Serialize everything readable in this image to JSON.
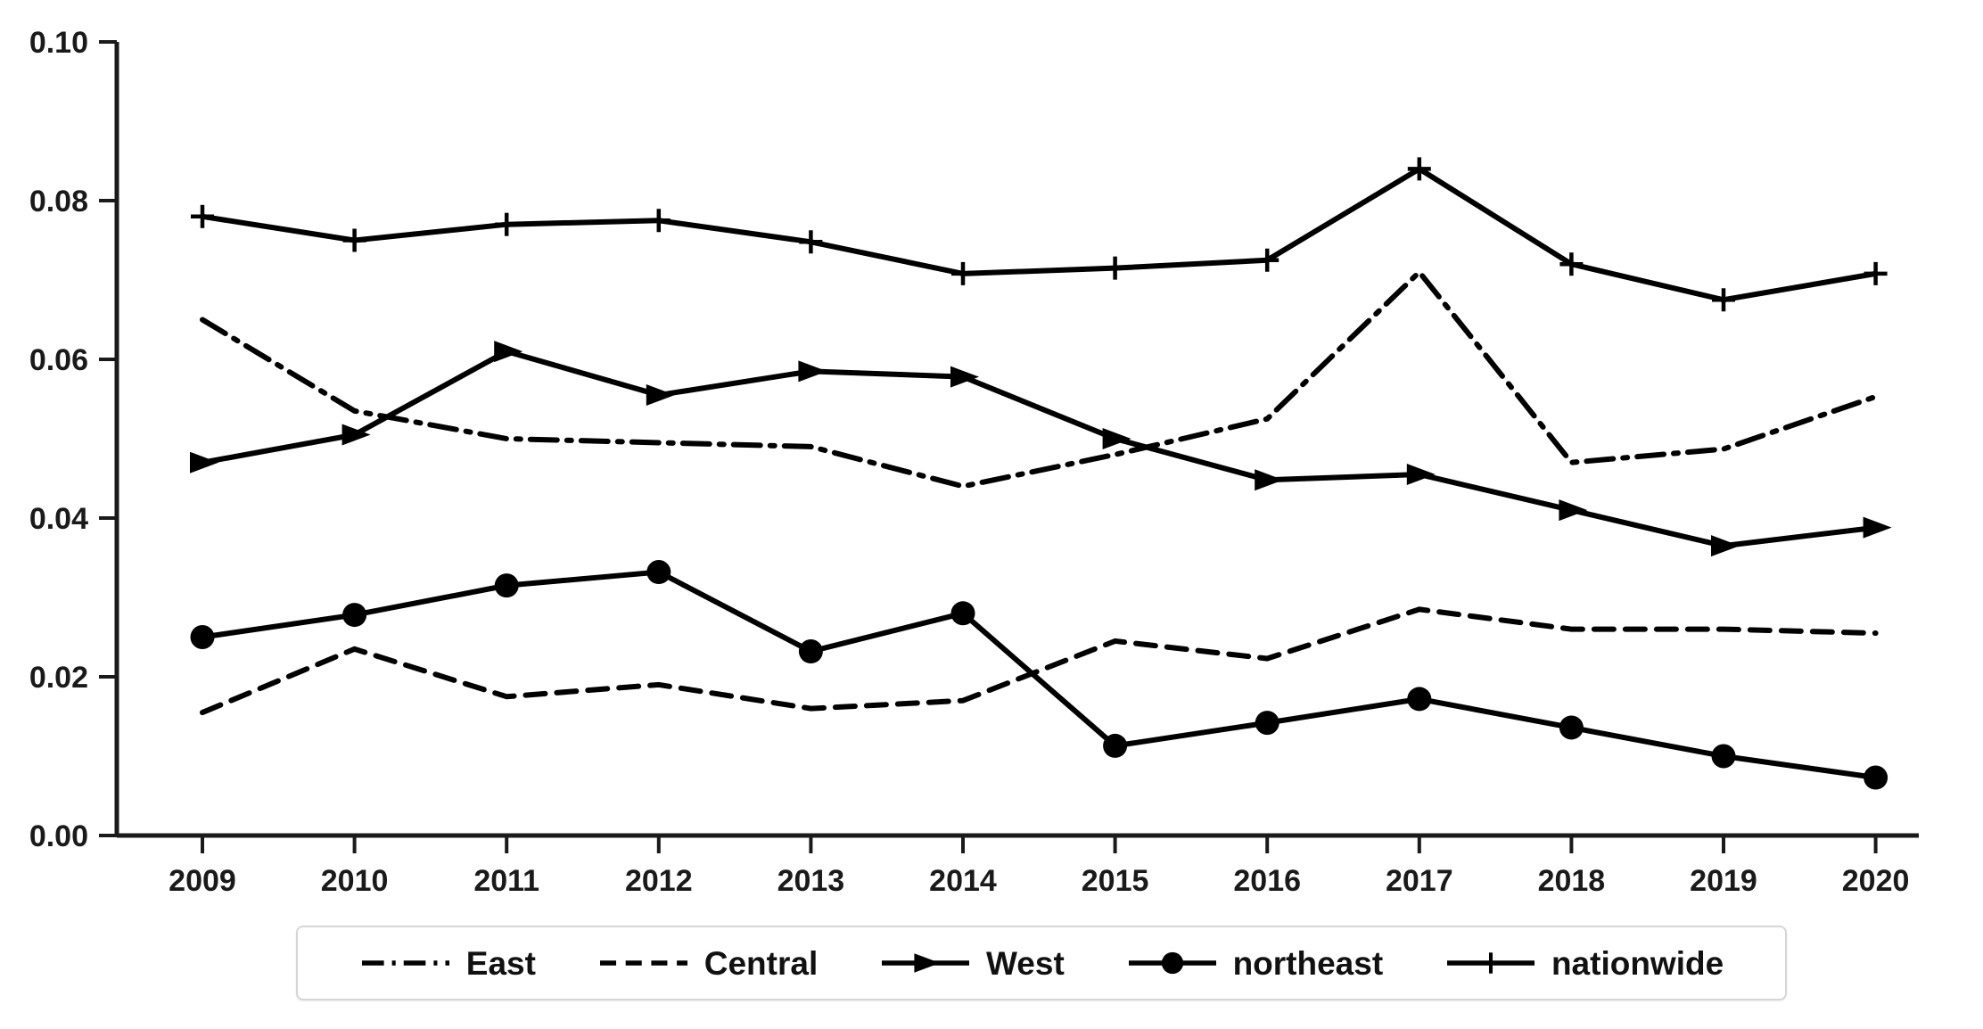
{
  "chart_data": {
    "type": "line",
    "title": "",
    "xlabel": "",
    "ylabel": "",
    "x": [
      2009,
      2010,
      2011,
      2012,
      2013,
      2014,
      2015,
      2016,
      2017,
      2018,
      2019,
      2020
    ],
    "ylim": [
      0.0,
      0.1
    ],
    "ytick_labels": [
      "0.00",
      "0.02",
      "0.04",
      "0.06",
      "0.08",
      "0.10"
    ],
    "ytick_values": [
      0.0,
      0.02,
      0.04,
      0.06,
      0.08,
      0.1
    ],
    "grid": false,
    "legend_position": "bottom",
    "axis_color": "#1a1a1a",
    "line_color": "#000000",
    "series": [
      {
        "name": "East",
        "line_style": "dashdot",
        "marker": "none",
        "values": [
          0.065,
          0.0535,
          0.05,
          0.0495,
          0.049,
          0.044,
          0.048,
          0.0525,
          0.071,
          0.047,
          0.0487,
          0.0553
        ]
      },
      {
        "name": "Central",
        "line_style": "dashed",
        "marker": "none",
        "values": [
          0.0155,
          0.0235,
          0.0175,
          0.019,
          0.016,
          0.017,
          0.0245,
          0.0223,
          0.0285,
          0.026,
          0.026,
          0.0255
        ]
      },
      {
        "name": "West",
        "line_style": "solid",
        "marker": "triangle-right",
        "values": [
          0.047,
          0.0505,
          0.061,
          0.0555,
          0.0585,
          0.0578,
          0.05,
          0.0448,
          0.0455,
          0.041,
          0.0365,
          0.0388
        ]
      },
      {
        "name": "northeast",
        "line_style": "solid",
        "marker": "circle",
        "values": [
          0.025,
          0.0278,
          0.0315,
          0.0332,
          0.0232,
          0.028,
          0.0113,
          0.0142,
          0.0172,
          0.0136,
          0.01,
          0.0073
        ]
      },
      {
        "name": "nationwide",
        "line_style": "solid",
        "marker": "plus",
        "values": [
          0.078,
          0.075,
          0.077,
          0.0775,
          0.0748,
          0.0708,
          0.0715,
          0.0725,
          0.084,
          0.072,
          0.0675,
          0.0708
        ]
      }
    ]
  }
}
